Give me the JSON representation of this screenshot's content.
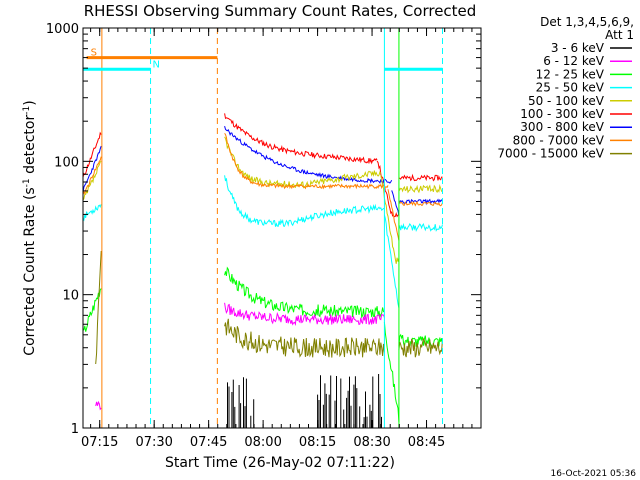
{
  "chart_data": {
    "type": "line",
    "title": "RHESSI Observing Summary Count Rates, Corrected",
    "xlabel": "Start Time (26-May-02 07:11:22)",
    "ylabel_main": "Corrected Count Rate (s",
    "ylabel_sup1": "-1",
    "ylabel_mid": " detector",
    "ylabel_sup2": "-1",
    "ylabel_end": ")",
    "footer": "16-Oct-2021 05:36",
    "y_scale": "log",
    "ylim": [
      1,
      1000
    ],
    "xlim_min": [
      -1.0,
      108.6
    ],
    "x_ticks": [
      {
        "min": 3.6,
        "label": "07:15"
      },
      {
        "min": 18.6,
        "label": "07:30"
      },
      {
        "min": 33.6,
        "label": "07:45"
      },
      {
        "min": 48.6,
        "label": "08:00"
      },
      {
        "min": 63.6,
        "label": "08:15"
      },
      {
        "min": 78.6,
        "label": "08:30"
      },
      {
        "min": 93.6,
        "label": "08:45"
      }
    ],
    "y_ticks": [
      {
        "v": 1,
        "label": "1"
      },
      {
        "v": 10,
        "label": "10"
      },
      {
        "v": 100,
        "label": "100"
      },
      {
        "v": 1000,
        "label": "1000"
      }
    ],
    "legend_header": [
      "Det 1,3,4,5,6,9,",
      "Att 1"
    ],
    "legend_placement": "right",
    "series": [
      {
        "name": "3 - 6 keV",
        "color": "#000000"
      },
      {
        "name": "6 - 12 keV",
        "color": "#ff00ff"
      },
      {
        "name": "12 - 25 keV",
        "color": "#00ff00"
      },
      {
        "name": "25 - 50 keV",
        "color": "#00ffff"
      },
      {
        "name": "50 - 100 keV",
        "color": "#cccc00"
      },
      {
        "name": "100 - 300 keV",
        "color": "#ff0000"
      },
      {
        "name": "300 - 800 keV",
        "color": "#0000ff"
      },
      {
        "name": "800 - 7000 keV",
        "color": "#ff8000"
      },
      {
        "name": "7000 - 15000 keV",
        "color": "#808000"
      }
    ],
    "flags": [
      {
        "label": "S",
        "color": "#ff8000",
        "start_min": 0.0,
        "end_min": 36.0,
        "level": 600
      },
      {
        "label": "N",
        "color": "#00ffff",
        "start_min": -1.0,
        "end_min": 17.6,
        "level": 490
      },
      {
        "label": "",
        "color": "#00ffff",
        "start_min": 82.0,
        "end_min": 98.0,
        "level": 490
      }
    ]
  }
}
